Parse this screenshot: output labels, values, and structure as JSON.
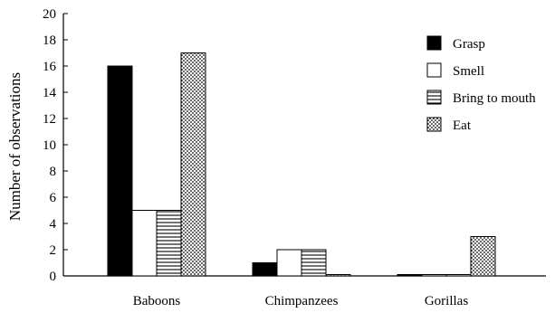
{
  "chart_data": {
    "type": "bar",
    "categories": [
      "Baboons",
      "Chimpanzees",
      "Gorillas"
    ],
    "series": [
      {
        "name": "Grasp",
        "values": [
          16,
          1,
          0
        ],
        "pattern": "solid-black"
      },
      {
        "name": "Smell",
        "values": [
          5,
          2,
          0
        ],
        "pattern": "white"
      },
      {
        "name": "Bring to mouth",
        "values": [
          5,
          2,
          0
        ],
        "pattern": "horizontal-lines"
      },
      {
        "name": "Eat",
        "values": [
          17,
          0,
          3
        ],
        "pattern": "dots"
      }
    ],
    "title": "",
    "xlabel": "",
    "ylabel": "Number of observations",
    "ylim": [
      0,
      20
    ],
    "yticks": [
      0,
      2,
      4,
      6,
      8,
      10,
      12,
      14,
      16,
      18,
      20
    ],
    "grid": false,
    "legend": "top-right"
  }
}
